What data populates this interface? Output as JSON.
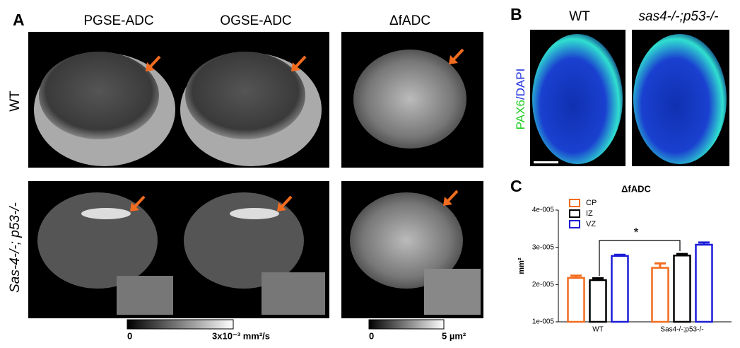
{
  "panels": {
    "a": "A",
    "b": "B",
    "c": "C"
  },
  "panel_a": {
    "columns": [
      "PGSE-ADC",
      "OGSE-ADC",
      "ΔfADC"
    ],
    "rows": [
      "WT",
      "Sas-4-/-; p53-/-"
    ],
    "colorbar_adc": [
      "0",
      "3x10⁻³ mm²/s"
    ],
    "colorbar_dfadc": [
      "0",
      "5 µm²"
    ]
  },
  "panel_b": {
    "columns": [
      "WT",
      "sas4-/-;p53-/-"
    ],
    "stain": [
      "PAX6",
      "/DAPI"
    ]
  },
  "chart_data": {
    "type": "bar",
    "title": "ΔfADC",
    "y_label": "mm²",
    "categories": [
      "WT",
      "Sas4-/-;p53-/-"
    ],
    "series": [
      {
        "name": "CP",
        "color": "#f26c1f",
        "values": [
          2.18e-05,
          2.45e-05
        ],
        "errors": [
          6e-07,
          1.2e-06
        ]
      },
      {
        "name": "IZ",
        "color": "#000000",
        "values": [
          2.12e-05,
          2.78e-05
        ],
        "errors": [
          5e-07,
          4e-07
        ]
      },
      {
        "name": "VZ",
        "color": "#1c1cd8",
        "values": [
          2.77e-05,
          3.07e-05
        ],
        "errors": [
          3e-07,
          6e-07
        ]
      }
    ],
    "ylim": [
      1e-05,
      4e-05
    ],
    "yticks": [
      {
        "value": 1e-05,
        "label": "1e-005"
      },
      {
        "value": 2e-05,
        "label": "2e-005"
      },
      {
        "value": 3e-05,
        "label": "3e-005"
      },
      {
        "value": 4e-05,
        "label": "4e-005"
      }
    ],
    "annotation": "*"
  }
}
